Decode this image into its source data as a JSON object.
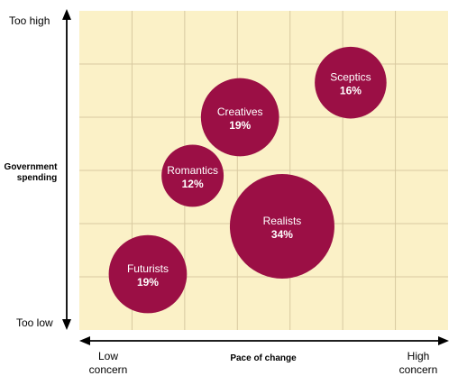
{
  "chart_data": {
    "type": "scatter",
    "title": "",
    "xlabel": "Pace of change",
    "ylabel_lines": [
      "Government",
      "spending"
    ],
    "x_axis": {
      "low_label_lines": [
        "Low",
        "concern"
      ],
      "high_label_lines": [
        "High",
        "concern"
      ]
    },
    "y_axis": {
      "top_label": "Too high",
      "bottom_label": "Too low"
    },
    "xlim": [
      0,
      7
    ],
    "ylim": [
      0,
      6
    ],
    "grid": true,
    "colors": {
      "plot_background": "#fbf1c7",
      "grid": "#d8c9a0",
      "bubble": "#9b0f45",
      "bubble_text": "#ffffff",
      "axis": "#000000"
    },
    "series": [
      {
        "points": [
          {
            "label": "Futurists",
            "value_label": "19%",
            "x": 1.3,
            "y": 1.05,
            "size": 19
          },
          {
            "label": "Romantics",
            "value_label": "12%",
            "x": 2.15,
            "y": 2.9,
            "size": 12
          },
          {
            "label": "Creatives",
            "value_label": "19%",
            "x": 3.05,
            "y": 4.0,
            "size": 19
          },
          {
            "label": "Realists",
            "value_label": "34%",
            "x": 3.85,
            "y": 1.95,
            "size": 34
          },
          {
            "label": "Sceptics",
            "value_label": "16%",
            "x": 5.15,
            "y": 4.65,
            "size": 16
          }
        ]
      }
    ]
  }
}
